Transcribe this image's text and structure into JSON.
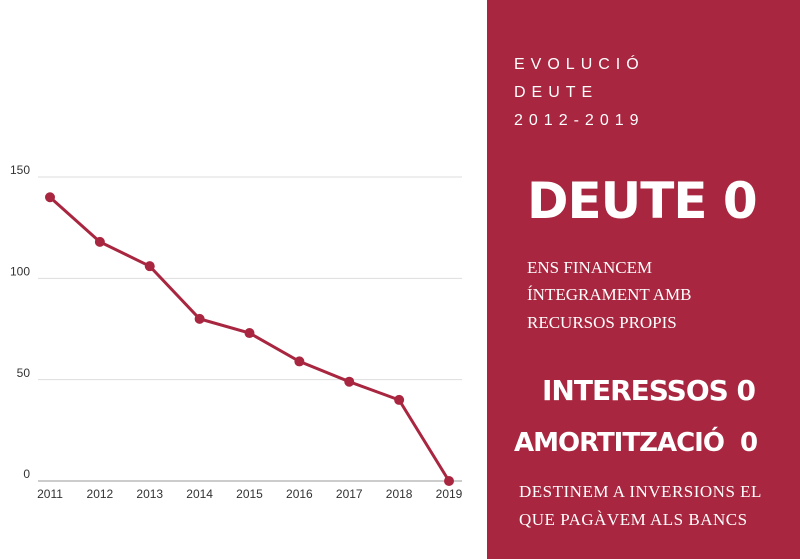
{
  "chart_data": {
    "type": "line",
    "categories": [
      "2011",
      "2012",
      "2013",
      "2014",
      "2015",
      "2016",
      "2017",
      "2018",
      "2019"
    ],
    "series": [
      {
        "name": null,
        "color": "#a8263f",
        "values": [
          140,
          118,
          106,
          80,
          73,
          59,
          49,
          40,
          0
        ]
      }
    ],
    "ylim": [
      0,
      150
    ],
    "yticks": [
      0,
      50,
      100,
      150
    ],
    "grid": true
  },
  "panel": {
    "heading": [
      "EVOLUCIÓ",
      "DEUTE",
      "2012-2019"
    ],
    "headline": "DEUTE 0",
    "text1": [
      "ENS FINANCEM",
      "ÍNTEGRAMENT AMB",
      "RECURSOS PROPIS"
    ],
    "headline2": "INTERESSOS 0",
    "headline3": "AMORTITZACIÓ  0",
    "text2": [
      "DESTINEM A INVERSIONS EL",
      "QUE PAGÀVEM ALS BANCS"
    ]
  }
}
